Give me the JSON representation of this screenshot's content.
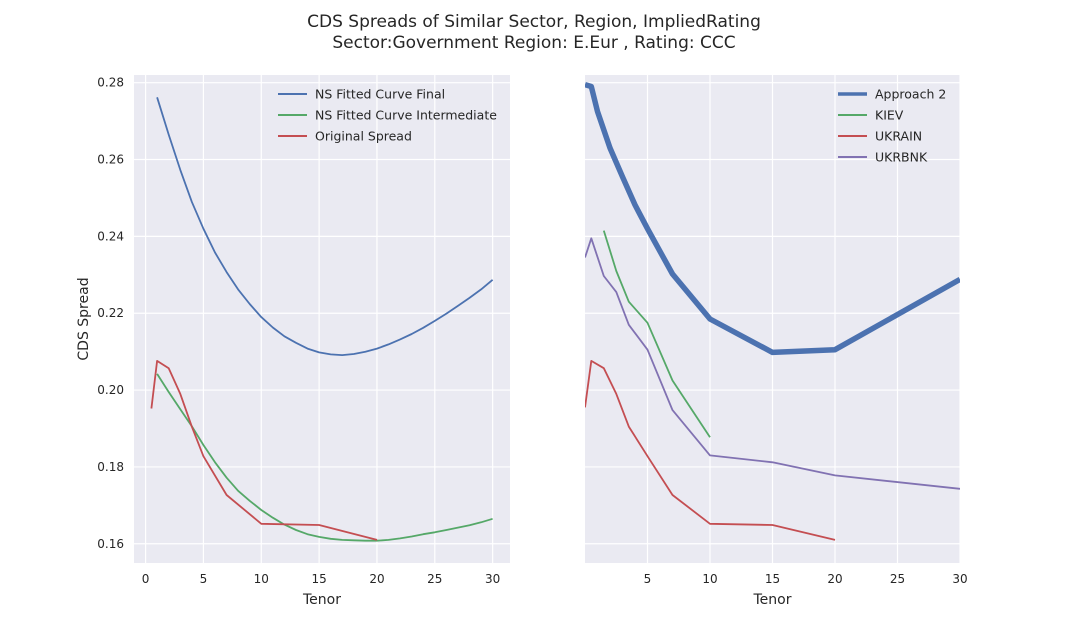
{
  "figure": {
    "title_line1": "CDS Spreads of Similar Sector, Region, ImpliedRating",
    "title_line2": "Sector:Government Region: E.Eur , Rating: CCC"
  },
  "colors": {
    "background": "#eaeaf2",
    "grid": "#ffffff",
    "blue": "#4c72b0",
    "green": "#55a868",
    "red": "#c44e52",
    "purple": "#8172b2"
  },
  "chart_data": [
    {
      "type": "line",
      "xlabel": "Tenor",
      "ylabel": "CDS Spread",
      "xlim": [
        -1,
        31.5
      ],
      "ylim": [
        0.155,
        0.282
      ],
      "x_ticks": [
        0,
        5,
        10,
        15,
        20,
        25,
        30
      ],
      "x_tick_labels": [
        "0",
        "5",
        "10",
        "15",
        "20",
        "25",
        "30"
      ],
      "y_ticks": [
        0.16,
        0.18,
        0.2,
        0.22,
        0.24,
        0.26,
        0.28
      ],
      "y_tick_labels": [
        "0.16",
        "0.18",
        "0.20",
        "0.22",
        "0.24",
        "0.26",
        "0.28"
      ],
      "grid": true,
      "legend_position": "top-right",
      "series": [
        {
          "name": "NS Fitted Curve Final",
          "color": "#4c72b0",
          "width": 1.8,
          "x": [
            1,
            2,
            3,
            4,
            5,
            6,
            7,
            8,
            9,
            10,
            11,
            12,
            13,
            14,
            15,
            16,
            17,
            18,
            19,
            20,
            21,
            22,
            23,
            24,
            25,
            26,
            27,
            28,
            29,
            30
          ],
          "y": [
            0.2762,
            0.2665,
            0.2573,
            0.249,
            0.242,
            0.2358,
            0.2307,
            0.2262,
            0.2224,
            0.219,
            0.2163,
            0.214,
            0.2123,
            0.2108,
            0.2098,
            0.2093,
            0.2091,
            0.2094,
            0.21,
            0.2108,
            0.2119,
            0.2132,
            0.2146,
            0.2162,
            0.218,
            0.2199,
            0.2219,
            0.224,
            0.2262,
            0.2287
          ]
        },
        {
          "name": "NS Fitted Curve Intermediate",
          "color": "#55a868",
          "width": 1.8,
          "x": [
            1,
            2,
            3,
            4,
            5,
            6,
            7,
            8,
            9,
            10,
            11,
            12,
            13,
            14,
            15,
            16,
            17,
            18,
            19,
            20,
            21,
            22,
            23,
            24,
            25,
            26,
            27,
            28,
            29,
            30
          ],
          "y": [
            0.2042,
            0.1995,
            0.195,
            0.1906,
            0.1857,
            0.1812,
            0.1772,
            0.1738,
            0.1712,
            0.1688,
            0.1668,
            0.165,
            0.1636,
            0.1625,
            0.1618,
            0.1613,
            0.161,
            0.1609,
            0.1608,
            0.1608,
            0.161,
            0.1614,
            0.1619,
            0.1625,
            0.163,
            0.1636,
            0.1642,
            0.1648,
            0.1656,
            0.1665
          ]
        },
        {
          "name": "Original Spread",
          "color": "#c44e52",
          "width": 1.8,
          "x": [
            0.5,
            1,
            2,
            3,
            4,
            5,
            7,
            10,
            15,
            20
          ],
          "y": [
            0.1952,
            0.2076,
            0.2057,
            0.199,
            0.1905,
            0.1828,
            0.1727,
            0.1652,
            0.1649,
            0.161
          ]
        }
      ]
    },
    {
      "type": "line",
      "xlabel": "Tenor",
      "ylabel": "",
      "xlim": [
        0,
        30
      ],
      "ylim": [
        0.155,
        0.282
      ],
      "x_ticks": [
        5,
        10,
        15,
        20,
        25,
        30
      ],
      "x_tick_labels": [
        "5",
        "10",
        "15",
        "20",
        "25",
        "30"
      ],
      "y_ticks": [
        0.16,
        0.18,
        0.2,
        0.22,
        0.24,
        0.26,
        0.28
      ],
      "y_tick_labels": [],
      "grid": true,
      "legend_position": "top-right",
      "series": [
        {
          "name": "Approach 2",
          "color": "#4c72b0",
          "width": 5.5,
          "x": [
            0,
            0.5,
            1,
            2,
            3,
            4,
            5,
            7,
            10,
            15,
            20,
            30
          ],
          "y": [
            0.2795,
            0.279,
            0.2725,
            0.263,
            0.2555,
            0.2482,
            0.242,
            0.2302,
            0.2185,
            0.2098,
            0.2105,
            0.2288
          ]
        },
        {
          "name": "KIEV",
          "color": "#55a868",
          "width": 1.8,
          "x": [
            1.5,
            2.5,
            3.5,
            5,
            7,
            10
          ],
          "y": [
            0.2415,
            0.231,
            0.223,
            0.2175,
            0.2025,
            0.1877
          ]
        },
        {
          "name": "UKRAIN",
          "color": "#c44e52",
          "width": 1.8,
          "x": [
            0,
            0.5,
            1.5,
            2.5,
            3.5,
            5,
            7,
            10,
            15,
            20
          ],
          "y": [
            0.1955,
            0.2076,
            0.2057,
            0.199,
            0.1905,
            0.1828,
            0.1727,
            0.1652,
            0.1649,
            0.161
          ]
        },
        {
          "name": "UKRBNK",
          "color": "#8172b2",
          "width": 1.8,
          "x": [
            0,
            0.5,
            1.5,
            2.5,
            3.5,
            5,
            7,
            10,
            15,
            20,
            30
          ],
          "y": [
            0.2345,
            0.2395,
            0.2297,
            0.2255,
            0.217,
            0.2105,
            0.1948,
            0.183,
            0.1812,
            0.1778,
            0.1743
          ]
        }
      ]
    }
  ]
}
